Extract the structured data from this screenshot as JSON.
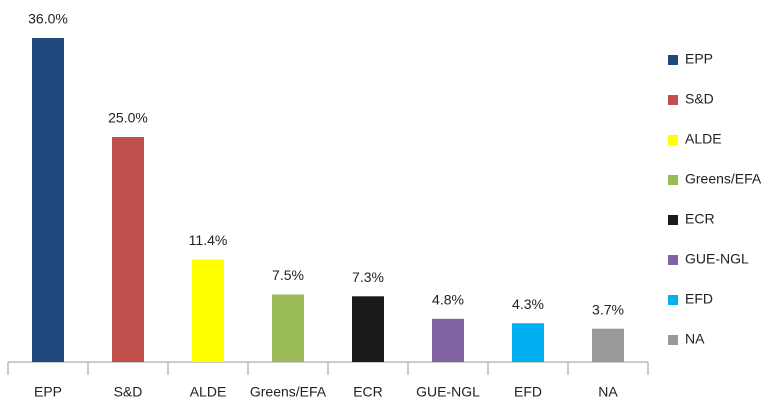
{
  "chart_data": {
    "type": "bar",
    "categories": [
      "EPP",
      "S&D",
      "ALDE",
      "Greens/EFA",
      "ECR",
      "GUE-NGL",
      "EFD",
      "NA"
    ],
    "values": [
      36.0,
      25.0,
      11.4,
      7.5,
      7.3,
      4.8,
      4.3,
      3.7
    ],
    "value_labels": [
      "36.0%",
      "25.0%",
      "11.4%",
      "7.5%",
      "7.3%",
      "4.8%",
      "4.3%",
      "3.7%"
    ],
    "colors": [
      "#1f497d",
      "#c0504d",
      "#ffff00",
      "#9bbb59",
      "#1a1a1a",
      "#8064a2",
      "#00b0f0",
      "#999999"
    ],
    "legend": "right"
  }
}
